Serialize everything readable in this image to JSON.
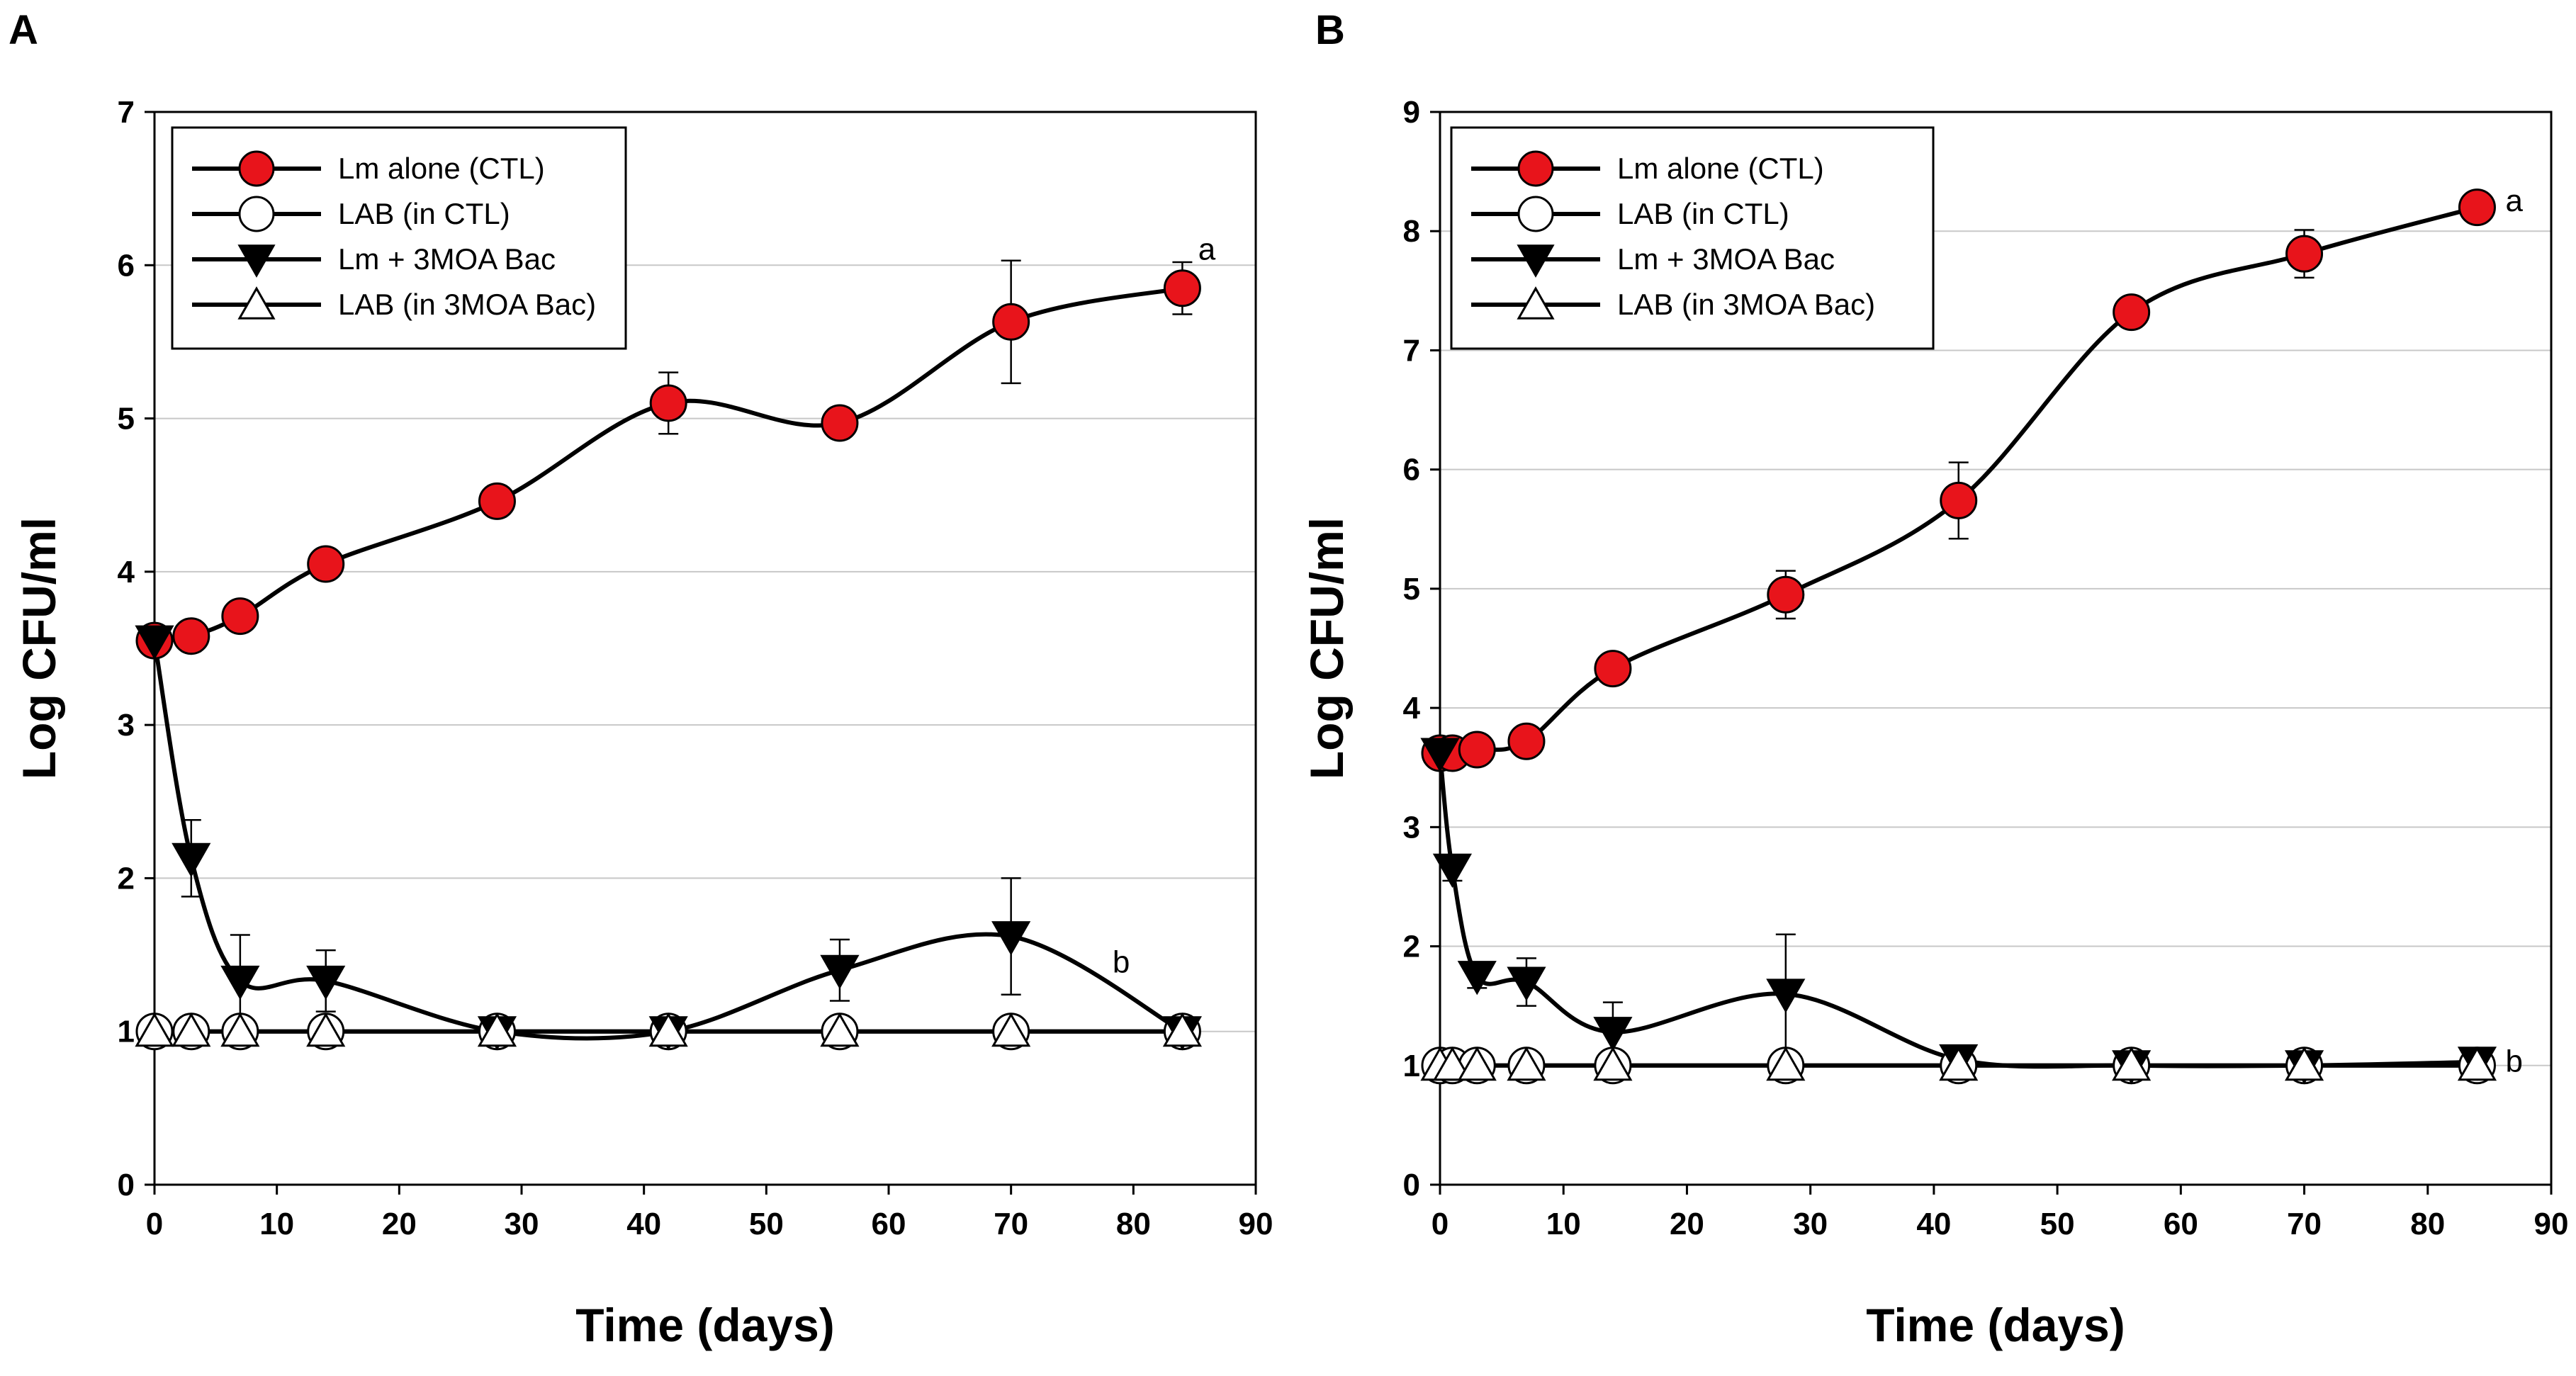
{
  "chart_data": [
    {
      "panel": "A",
      "type": "line",
      "xlabel": "Time (days)",
      "ylabel": "Log CFU/ml",
      "xlim": [
        0,
        90
      ],
      "ylim": [
        0,
        7
      ],
      "xticks": [
        0,
        10,
        20,
        30,
        40,
        50,
        60,
        70,
        80,
        90
      ],
      "yticks": [
        0,
        1,
        2,
        3,
        4,
        5,
        6,
        7
      ],
      "grid": "horizontal",
      "legend": "top-left",
      "series": [
        {
          "name": "Lm alone (CTL)",
          "marker": "circle",
          "fill": "#e8141b",
          "x": [
            0,
            3,
            7,
            14,
            28,
            42,
            56,
            70,
            84
          ],
          "y": [
            3.55,
            3.58,
            3.71,
            4.05,
            4.46,
            5.1,
            4.97,
            5.63,
            5.85
          ],
          "err": [
            0.05,
            0.1,
            0.06,
            0.07,
            0.1,
            0.2,
            0.1,
            0.4,
            0.17
          ]
        },
        {
          "name": "LAB (in CTL)",
          "marker": "circle",
          "fill": "#ffffff",
          "x": [
            0,
            3,
            7,
            14,
            28,
            42,
            56,
            70,
            84
          ],
          "y": [
            1,
            1,
            1,
            1,
            1,
            1,
            1,
            1,
            1
          ],
          "err": [
            0,
            0,
            0,
            0,
            0,
            0,
            0,
            0,
            0
          ]
        },
        {
          "name": "Lm + 3MOA Bac",
          "marker": "triangle-down",
          "fill": "#000000",
          "x": [
            0,
            3,
            7,
            14,
            28,
            42,
            56,
            70,
            84
          ],
          "y": [
            3.55,
            2.13,
            1.33,
            1.33,
            1.0,
            1.0,
            1.4,
            1.62,
            1.0
          ],
          "err": [
            0,
            0.25,
            0.3,
            0.2,
            0,
            0,
            0.2,
            0.38,
            0
          ]
        },
        {
          "name": "LAB (in 3MOA Bac)",
          "marker": "triangle-up",
          "fill": "#ffffff",
          "x": [
            0,
            3,
            7,
            14,
            28,
            42,
            56,
            70,
            84
          ],
          "y": [
            1,
            1,
            1,
            1,
            1,
            1,
            1,
            1,
            1
          ],
          "err": [
            0,
            0,
            0,
            0,
            0,
            0,
            0,
            0,
            0
          ]
        }
      ],
      "annotations": [
        {
          "text": "a",
          "x": 86,
          "y": 6.1
        },
        {
          "text": "b",
          "x": 79,
          "y": 1.45
        }
      ]
    },
    {
      "panel": "B",
      "type": "line",
      "xlabel": "Time (days)",
      "ylabel": "Log CFU/ml",
      "xlim": [
        0,
        90
      ],
      "ylim": [
        0,
        9
      ],
      "xticks": [
        0,
        10,
        20,
        30,
        40,
        50,
        60,
        70,
        80,
        90
      ],
      "yticks": [
        0,
        1,
        2,
        3,
        4,
        5,
        6,
        7,
        8,
        9
      ],
      "grid": "horizontal",
      "legend": "top-left",
      "series": [
        {
          "name": "Lm alone (CTL)",
          "marker": "circle",
          "fill": "#e8141b",
          "x": [
            0,
            1,
            3,
            7,
            14,
            28,
            42,
            56,
            70,
            84
          ],
          "y": [
            3.62,
            3.62,
            3.65,
            3.72,
            4.33,
            4.95,
            5.74,
            7.32,
            7.81,
            8.2
          ],
          "err": [
            0.05,
            0.05,
            0.05,
            0.06,
            0.1,
            0.2,
            0.32,
            0.12,
            0.2,
            0.05
          ]
        },
        {
          "name": "LAB (in CTL)",
          "marker": "circle",
          "fill": "#ffffff",
          "x": [
            0,
            1,
            3,
            7,
            14,
            28,
            42,
            56,
            70,
            84
          ],
          "y": [
            1,
            1,
            1,
            1,
            1,
            1,
            1,
            1,
            1,
            1
          ],
          "err": [
            0,
            0,
            0,
            0,
            0,
            0,
            0,
            0,
            0,
            0
          ]
        },
        {
          "name": "Lm + 3MOA Bac",
          "marker": "triangle-down",
          "fill": "#000000",
          "x": [
            0,
            1,
            3,
            7,
            14,
            28,
            42,
            56,
            70,
            84
          ],
          "y": [
            3.62,
            2.65,
            1.75,
            1.7,
            1.28,
            1.6,
            1.05,
            1.0,
            1.0,
            1.03
          ],
          "err": [
            0,
            0.1,
            0.1,
            0.2,
            0.25,
            0.5,
            0.05,
            0.03,
            0.03,
            0.03
          ]
        },
        {
          "name": "LAB (in 3MOA Bac)",
          "marker": "triangle-up",
          "fill": "#ffffff",
          "x": [
            0,
            1,
            3,
            7,
            14,
            28,
            42,
            56,
            70,
            84
          ],
          "y": [
            1,
            1,
            1,
            1,
            1,
            1,
            1,
            1,
            1,
            1
          ],
          "err": [
            0,
            0,
            0,
            0,
            0,
            0,
            0,
            0,
            0,
            0
          ]
        }
      ],
      "annotations": [
        {
          "text": "a",
          "x": 87,
          "y": 8.25
        },
        {
          "text": "b",
          "x": 87,
          "y": 1.03
        }
      ]
    }
  ]
}
